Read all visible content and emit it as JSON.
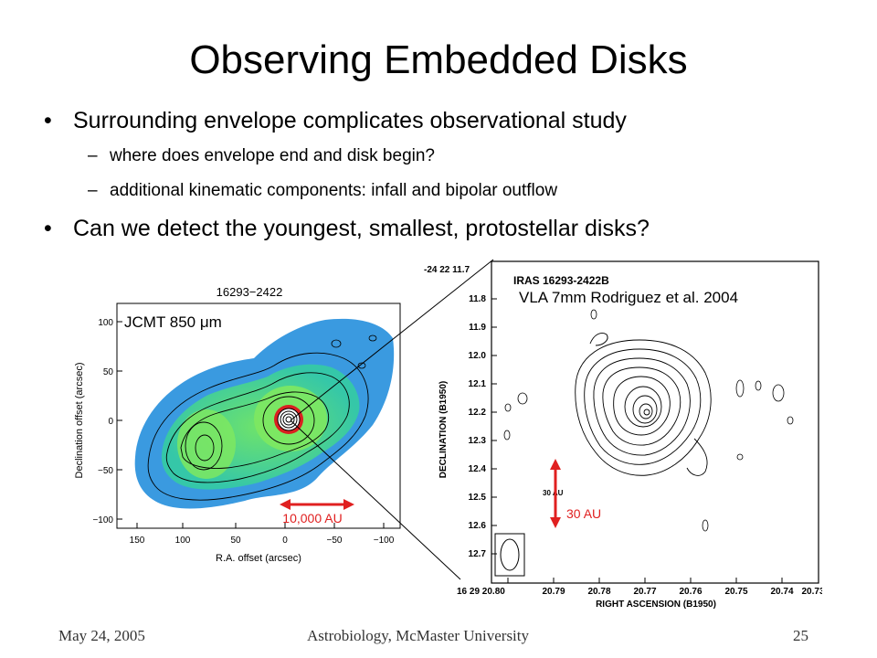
{
  "slide": {
    "title": "Observing Embedded Disks",
    "bullets": [
      {
        "text": "Surrounding envelope complicates observational study"
      },
      {
        "text": "Can we detect the youngest, smallest, protostellar disks?"
      }
    ],
    "sub_bullets": [
      {
        "text": "where does envelope end and disk begin?"
      },
      {
        "text": "additional kinematic components: infall and bipolar outflow"
      }
    ],
    "bullet_marker": "•",
    "dash_marker": "–"
  },
  "left_map": {
    "header": "16293−2422",
    "label": "JCMT 850 μm",
    "scale_label": "10,000 AU",
    "ylabel": "Declination offset (arcsec)",
    "xlabel": "R.A. offset (arcsec)",
    "y_ticks": [
      "100",
      "50",
      "0",
      "−50",
      "−100"
    ],
    "x_ticks": [
      "150",
      "100",
      "50",
      "0",
      "−50",
      "−100"
    ],
    "colors": {
      "outer": "#3a9ae0",
      "mid": "#35c7a8",
      "inner": "#6fe36a",
      "peak": "#d92020",
      "arrow": "#e02020"
    }
  },
  "right_map": {
    "header": "IRAS 16293-2422B",
    "label": "VLA 7mm Rodriguez et al. 2004",
    "top_tick": "-24 22 11.7",
    "y_ticks": [
      "11.8",
      "11.9",
      "12.0",
      "12.1",
      "12.2",
      "12.3",
      "12.4",
      "12.5",
      "12.6",
      "12.7"
    ],
    "x_ticks": [
      "16 29 20.80",
      "20.79",
      "20.78",
      "20.77",
      "20.76",
      "20.75",
      "20.74",
      "20.73"
    ],
    "ylabel": "DECLINATION (B1950)",
    "xlabel": "RIGHT ASCENSION (B1950)",
    "scale_small": "30 AU",
    "scale_label": "30 AU"
  },
  "footer": {
    "date": "May 24, 2005",
    "venue": "Astrobiology, McMaster University",
    "page": "25"
  }
}
